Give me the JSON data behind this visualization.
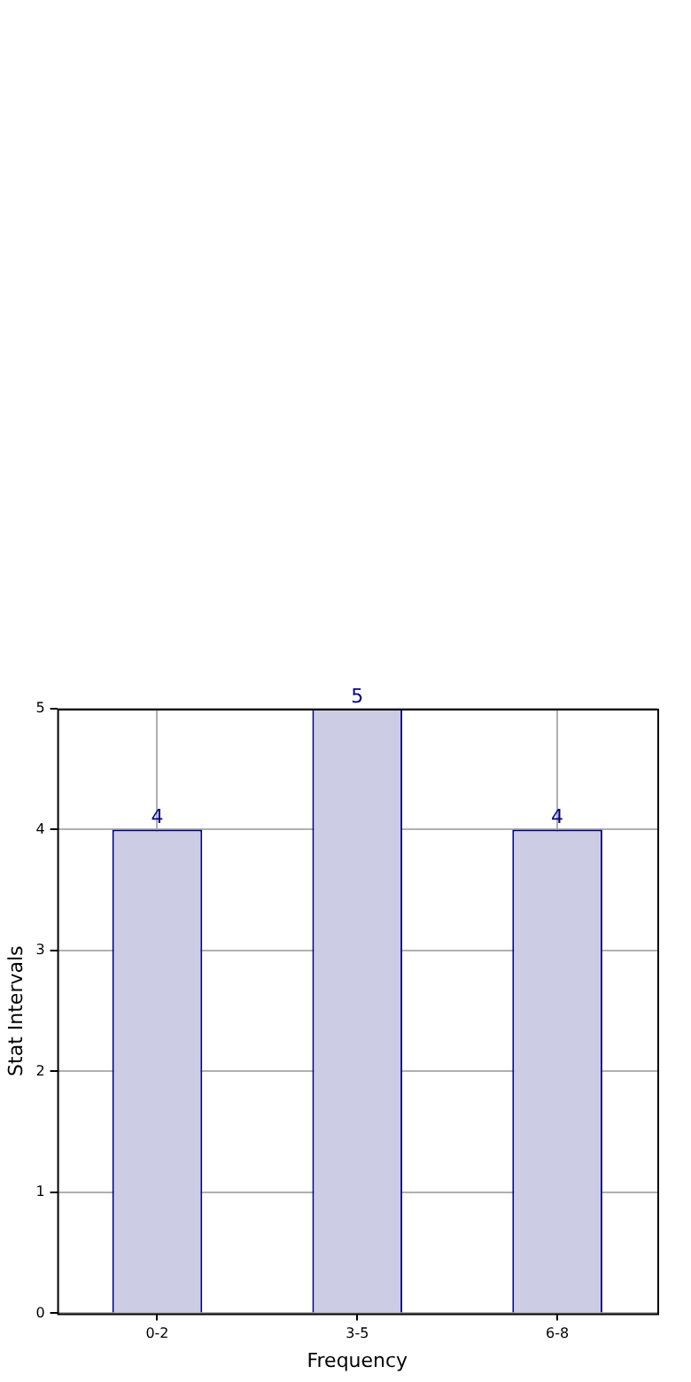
{
  "chart_data": {
    "type": "bar",
    "xlabel": "Frequency",
    "ylabel": "Stat Intervals",
    "categories": [
      "0-2",
      "3-5",
      "6-8"
    ],
    "values": [
      4,
      5,
      4
    ],
    "color": "#ccccE5",
    "ylim": [
      0,
      5
    ],
    "yticks": [
      0,
      1,
      2,
      3,
      4,
      5
    ],
    "grid": true,
    "data_labels": true,
    "legend": false
  }
}
